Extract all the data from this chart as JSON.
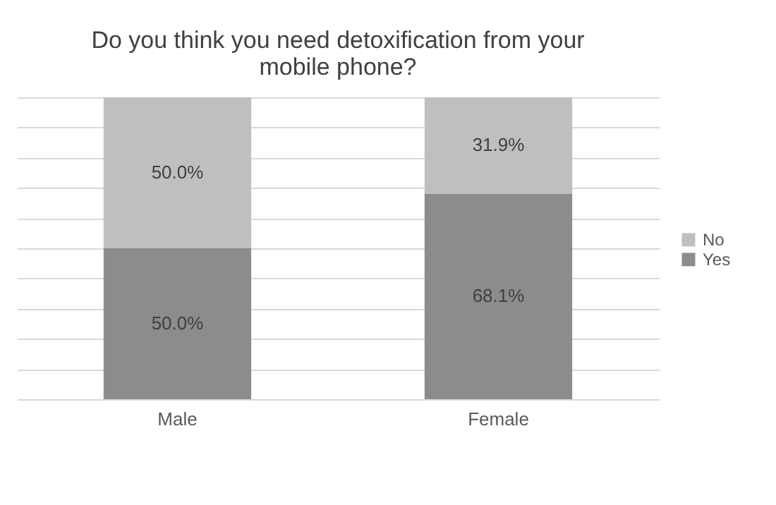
{
  "chart_data": {
    "type": "bar",
    "title": "Do you think you need detoxification from your mobile phone?",
    "categories": [
      "Male",
      "Female"
    ],
    "series": [
      {
        "name": "Yes",
        "color": "#8c8c8c",
        "values": [
          50.0,
          68.1
        ],
        "value_labels": [
          "50.0%",
          "68.1%"
        ]
      },
      {
        "name": "No",
        "color": "#bfbfbf",
        "values": [
          50.0,
          31.9
        ],
        "value_labels": [
          "50.0%",
          "31.9%"
        ]
      }
    ],
    "stacked": true,
    "ylim": [
      0,
      100
    ],
    "yticks": [
      {
        "value": 0,
        "label": null
      },
      {
        "value": 10,
        "label": null
      },
      {
        "value": 20,
        "label": null
      },
      {
        "value": 30,
        "label": null
      },
      {
        "value": 40,
        "label": null
      },
      {
        "value": 50,
        "label": null
      },
      {
        "value": 60,
        "label": null
      },
      {
        "value": 70,
        "label": null
      },
      {
        "value": 80,
        "label": null
      },
      {
        "value": 90,
        "label": null
      },
      {
        "value": 100,
        "label": null
      }
    ],
    "tick_labels": "x",
    "grid": "y",
    "legend": "right"
  }
}
